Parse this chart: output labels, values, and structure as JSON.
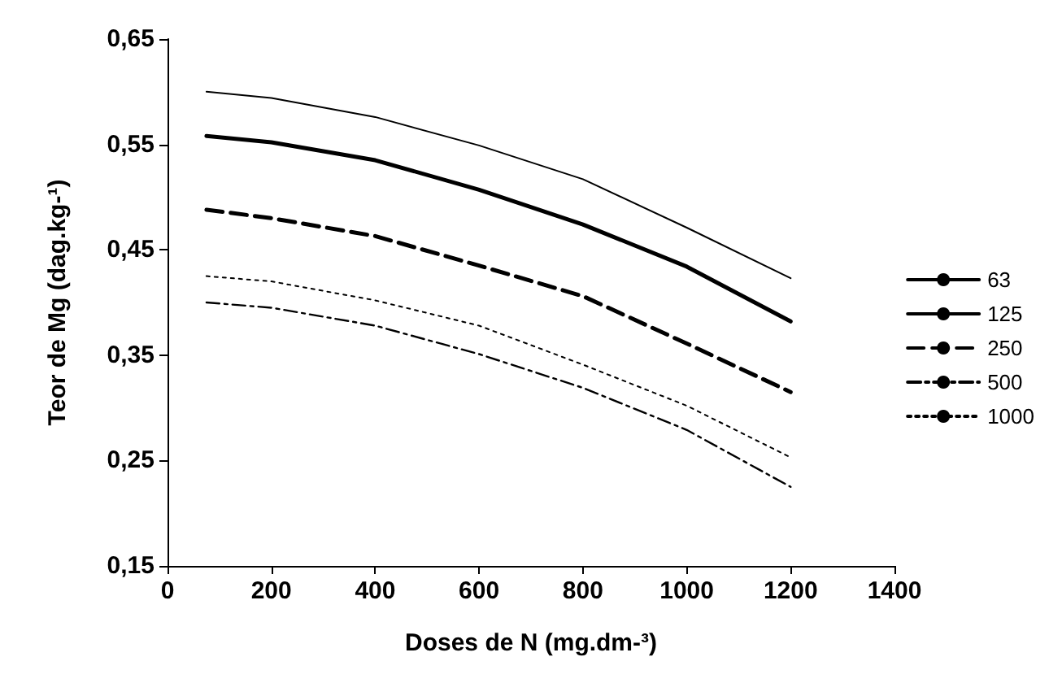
{
  "chart_data": {
    "type": "line",
    "xlabel": "Doses de N (mg.dm-³)",
    "ylabel": "Teor de Mg (dag.kg-¹)",
    "x": [
      75,
      200,
      400,
      600,
      800,
      1000,
      1200
    ],
    "series": [
      {
        "name": "63",
        "color": "#000000",
        "line_style": "solid",
        "values": [
          0.6,
          0.594,
          0.576,
          0.549,
          0.517,
          0.471,
          0.423
        ]
      },
      {
        "name": "125",
        "color": "#000000",
        "line_style": "solid",
        "values": [
          0.558,
          0.552,
          0.535,
          0.507,
          0.474,
          0.434,
          0.382
        ]
      },
      {
        "name": "250",
        "color": "#000000",
        "line_style": "dashed",
        "values": [
          0.488,
          0.48,
          0.463,
          0.435,
          0.406,
          0.361,
          0.315
        ]
      },
      {
        "name": "500",
        "color": "#000000",
        "line_style": "dashdot",
        "values": [
          0.4,
          0.395,
          0.378,
          0.351,
          0.319,
          0.279,
          0.225
        ]
      },
      {
        "name": "1000",
        "color": "#000000",
        "line_style": "dotted",
        "values": [
          0.425,
          0.42,
          0.402,
          0.378,
          0.341,
          0.302,
          0.253
        ]
      }
    ],
    "xlim": [
      0,
      1400
    ],
    "xticks": [
      0,
      200,
      400,
      600,
      800,
      1000,
      1200,
      1400
    ],
    "ylim": [
      0.15,
      0.65
    ],
    "yticks": [
      {
        "value": 0.15,
        "label": "0,15"
      },
      {
        "value": 0.25,
        "label": "0,25"
      },
      {
        "value": 0.35,
        "label": "0,35"
      },
      {
        "value": 0.45,
        "label": "0,45"
      },
      {
        "value": 0.55,
        "label": "0,55"
      },
      {
        "value": 0.65,
        "label": "0,65"
      }
    ],
    "grid": false,
    "legend": "right",
    "marker": "none"
  }
}
